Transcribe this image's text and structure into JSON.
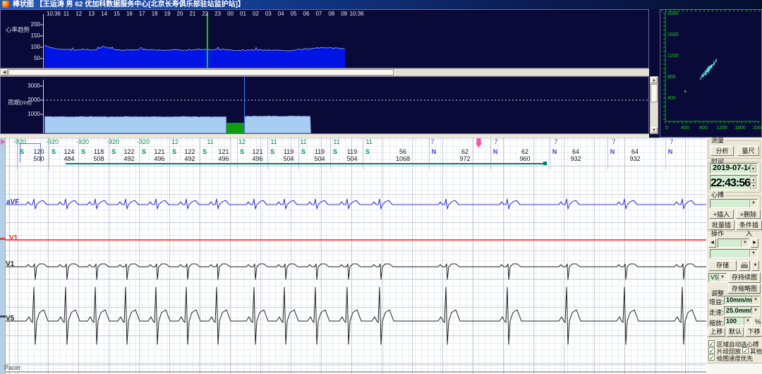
{
  "window": {
    "title": "棒状图 【王运涛 男 62 优加科数据服务中心[北京长寿俱乐部驻站监护站]】"
  },
  "chart_data": [
    {
      "id": "hr_trend",
      "type": "area",
      "title": "心率趋势",
      "yticks": [
        200,
        150,
        100,
        50
      ],
      "x_labels": [
        "10:36",
        "11",
        "12",
        "13",
        "14",
        "15",
        "16",
        "17",
        "18",
        "19",
        "20",
        "21",
        "22",
        "23",
        "00",
        "01",
        "02",
        "03",
        "04",
        "05",
        "06",
        "07",
        "08",
        "09",
        "10:36"
      ],
      "values_bpm": [
        108,
        98,
        94,
        91,
        89,
        88,
        92,
        88,
        87,
        104,
        93,
        89,
        88,
        87,
        89,
        91,
        89,
        88,
        87,
        88,
        89,
        87,
        88,
        89,
        91,
        89,
        88,
        91,
        89,
        87,
        86,
        88,
        87,
        89,
        88,
        86,
        87,
        85,
        86,
        90,
        92,
        95,
        99,
        97,
        96,
        95,
        94
      ],
      "fill_color": "#0014e6",
      "cursor_color": "#00d800",
      "cursor_at_label": "22:43"
    },
    {
      "id": "rr_period",
      "type": "area",
      "title": "周期(ms)",
      "yticks": [
        3000,
        2000,
        1000
      ],
      "values_ms_before_gap": [
        865,
        855,
        860,
        850,
        858,
        862,
        852,
        848,
        856,
        860,
        852,
        856,
        848,
        852,
        860,
        856,
        850,
        846,
        852,
        856
      ],
      "values_ms_after_gap": [
        880,
        895,
        885,
        900,
        890,
        905,
        895,
        888
      ],
      "reference_line_ms": 2000,
      "fill_color": "#a8cdf2",
      "selection_color": "#0f9c10",
      "cursor_color": "#4868ff"
    },
    {
      "id": "poincare",
      "type": "scatter",
      "x_ticks": [
        0,
        400,
        800,
        1200,
        1600,
        2000
      ],
      "y_ticks": [
        2000,
        1600,
        1200,
        800,
        400
      ],
      "cluster_center_ms": [
        940,
        960
      ],
      "cluster_spread_ms": 220,
      "outlier_ms": [
        430,
        530
      ],
      "axis_color": "#00b400",
      "point_color": "#35e0e0"
    }
  ],
  "annotations": {
    "marks": [
      {
        "x": 28,
        "t": "-920",
        "c": "g"
      },
      {
        "x": 74,
        "t": "-920",
        "c": "g"
      },
      {
        "x": 117,
        "t": "-920",
        "c": "g"
      },
      {
        "x": 160,
        "t": "-920",
        "c": "g"
      },
      {
        "x": 203,
        "t": "-920",
        "c": "g"
      },
      {
        "x": 248,
        "t": "12",
        "c": "g"
      },
      {
        "x": 298,
        "t": "11",
        "c": "g"
      },
      {
        "x": 343,
        "t": "12",
        "c": "g"
      },
      {
        "x": 388,
        "t": "11",
        "c": "g"
      },
      {
        "x": 430,
        "t": "11",
        "c": "g"
      },
      {
        "x": 477,
        "t": "11",
        "c": "g"
      },
      {
        "x": 523,
        "t": "11",
        "c": "g"
      },
      {
        "x": 613,
        "t": "7",
        "c": "b"
      },
      {
        "x": 703,
        "t": "7",
        "c": "b"
      },
      {
        "x": 788,
        "t": "7",
        "c": "b"
      },
      {
        "x": 870,
        "t": "7",
        "c": "b"
      },
      {
        "x": 952,
        "t": "7",
        "c": "b"
      }
    ],
    "beats": [
      {
        "x": 33,
        "l": "S"
      },
      {
        "x": 78,
        "l": "S"
      },
      {
        "x": 120,
        "l": "S"
      },
      {
        "x": 163,
        "l": "S"
      },
      {
        "x": 206,
        "l": "S"
      },
      {
        "x": 249,
        "l": "S"
      },
      {
        "x": 292,
        "l": "S"
      },
      {
        "x": 345,
        "l": "S"
      },
      {
        "x": 388,
        "l": "S"
      },
      {
        "x": 432,
        "l": "S"
      },
      {
        "x": 477,
        "l": "S"
      },
      {
        "x": 523,
        "l": "S"
      },
      {
        "x": 617,
        "l": "N"
      },
      {
        "x": 704,
        "l": "N"
      },
      {
        "x": 788,
        "l": "N"
      },
      {
        "x": 870,
        "l": "N"
      },
      {
        "x": 952,
        "l": "N"
      }
    ],
    "intervals": [
      {
        "x": 55,
        "hr": "120",
        "rr": "500"
      },
      {
        "x": 98,
        "hr": "124",
        "rr": "484"
      },
      {
        "x": 140,
        "hr": "118",
        "rr": "508"
      },
      {
        "x": 183,
        "hr": "122",
        "rr": "492"
      },
      {
        "x": 226,
        "hr": "121",
        "rr": "496"
      },
      {
        "x": 269,
        "hr": "122",
        "rr": "492"
      },
      {
        "x": 317,
        "hr": "121",
        "rr": "496"
      },
      {
        "x": 365,
        "hr": "121",
        "rr": "496"
      },
      {
        "x": 409,
        "hr": "119",
        "rr": "504"
      },
      {
        "x": 453,
        "hr": "119",
        "rr": "504"
      },
      {
        "x": 499,
        "hr": "119",
        "rr": "504"
      },
      {
        "x": 571,
        "hr": "56",
        "rr": "1068"
      },
      {
        "x": 659,
        "hr": "62",
        "rr": "972"
      },
      {
        "x": 744,
        "hr": "62",
        "rr": "960"
      },
      {
        "x": 816,
        "hr": "64",
        "rr": "932"
      },
      {
        "x": 900,
        "hr": "64",
        "rr": "932"
      }
    ]
  },
  "leads": {
    "avf": "aVF",
    "red": "V1",
    "v1": "V1",
    "v5": "V5",
    "pacer": "Pacer"
  },
  "sidebar": {
    "measure": {
      "label": "测量",
      "analyze": "分析",
      "ruler": "量尺"
    },
    "time": {
      "label": "时间",
      "date": "2019-07-14",
      "clock": "22:43:56"
    },
    "beat": {
      "label": "心搏",
      "insert": "+插入",
      "remove": "×删除",
      "batch": "批量插入",
      "conditional": "条件插入"
    },
    "op": {
      "label": "操作",
      "save": "存储",
      "lead": "V5",
      "save_cont": "存持续图",
      "save_thumb": "存缩略图"
    },
    "adjust": {
      "label": "调整",
      "gain_label": "增益:",
      "gain_value": "10mm/mV",
      "speed_label": "走速:",
      "speed_value": "25.0mm/s",
      "zoom_label": "缩放:",
      "zoom_value": "100",
      "percent": "%",
      "up": "上移",
      "default": "默认",
      "down": "下移"
    },
    "checks": {
      "auto": "区域自动选心搏",
      "segment": "片段回放",
      "other": "其他",
      "draw": "绘图速度优先"
    }
  }
}
